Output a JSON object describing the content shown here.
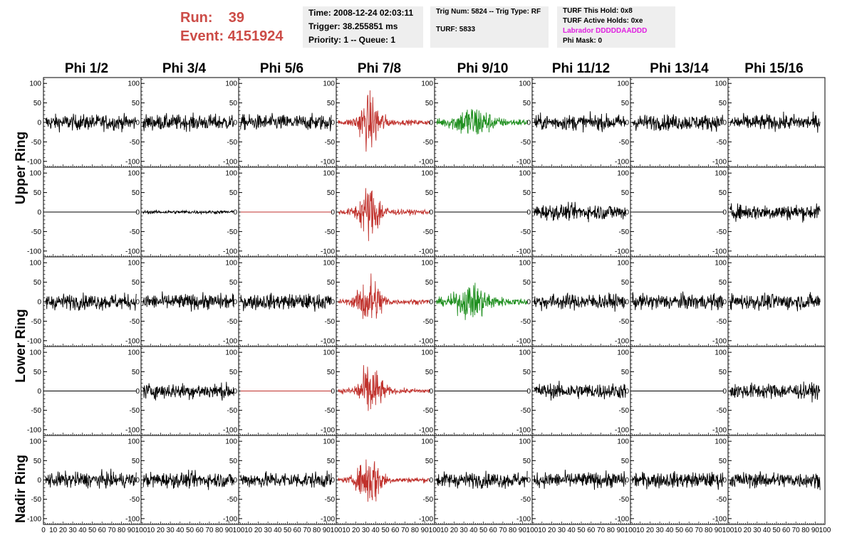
{
  "header": {
    "run_label": "Run:",
    "run_value": "39",
    "event_label": "Event:",
    "event_value": "4151924"
  },
  "info_time": {
    "time": "Time: 2008-12-24 02:03:11",
    "trigger": "Trigger: 38.255851 ms",
    "priority": "Priority: 1 -- Queue: 1"
  },
  "info_trig": {
    "trig": "Trig Num: 5824 -- Trig Type: RF",
    "turf": "TURF: 5833"
  },
  "info_turf": {
    "hold": "TURF This Hold: 0x8",
    "active": "TURF Active Holds: 0xe",
    "labrador": "Labrador DDDDDAADDD",
    "mask": "Phi Mask: 0"
  },
  "phi_columns": [
    "Phi 1/2",
    "Phi 3/4",
    "Phi 5/6",
    "Phi 7/8",
    "Phi 9/10",
    "Phi 11/12",
    "Phi 13/14",
    "Phi 15/16"
  ],
  "rings": [
    "Upper Ring",
    "Lower Ring",
    "Nadir Ring"
  ],
  "colors": {
    "header_red": "#cc4c47",
    "trace_black": "#000000",
    "trace_red": "#c0312c",
    "trace_green": "#1f8f1f",
    "labrador": "#e020e0"
  },
  "chart_data": {
    "type": "line",
    "y_ticks": [
      100,
      50,
      0,
      -50,
      -100
    ],
    "ylim": [
      -115,
      115
    ],
    "xlim": [
      0,
      100
    ],
    "x_tick_labels": [
      "0",
      "10",
      "20",
      "30",
      "40",
      "50",
      "60",
      "70",
      "80",
      "90",
      "100"
    ],
    "panels": [
      [
        "noise",
        "noise",
        "noise",
        "red",
        "green",
        "noise",
        "noise",
        "noise"
      ],
      [
        "flat",
        "small",
        "flatred",
        "red",
        "flat",
        "noise",
        "flat",
        "noise"
      ],
      [
        "noise",
        "noise",
        "noise",
        "red",
        "green",
        "noise",
        "noise",
        "noise"
      ],
      [
        "flat",
        "noise",
        "flatred",
        "red",
        "flat",
        "noise",
        "flat",
        "noise"
      ],
      [
        "noise",
        "noise",
        "noise",
        "red",
        "noise",
        "noise",
        "noise",
        "noise"
      ]
    ],
    "amplitude_profile": {
      "noise": 18,
      "small": 4,
      "flat": 0,
      "flatred": 0,
      "red_peak": 60,
      "green_peak": 35
    }
  }
}
